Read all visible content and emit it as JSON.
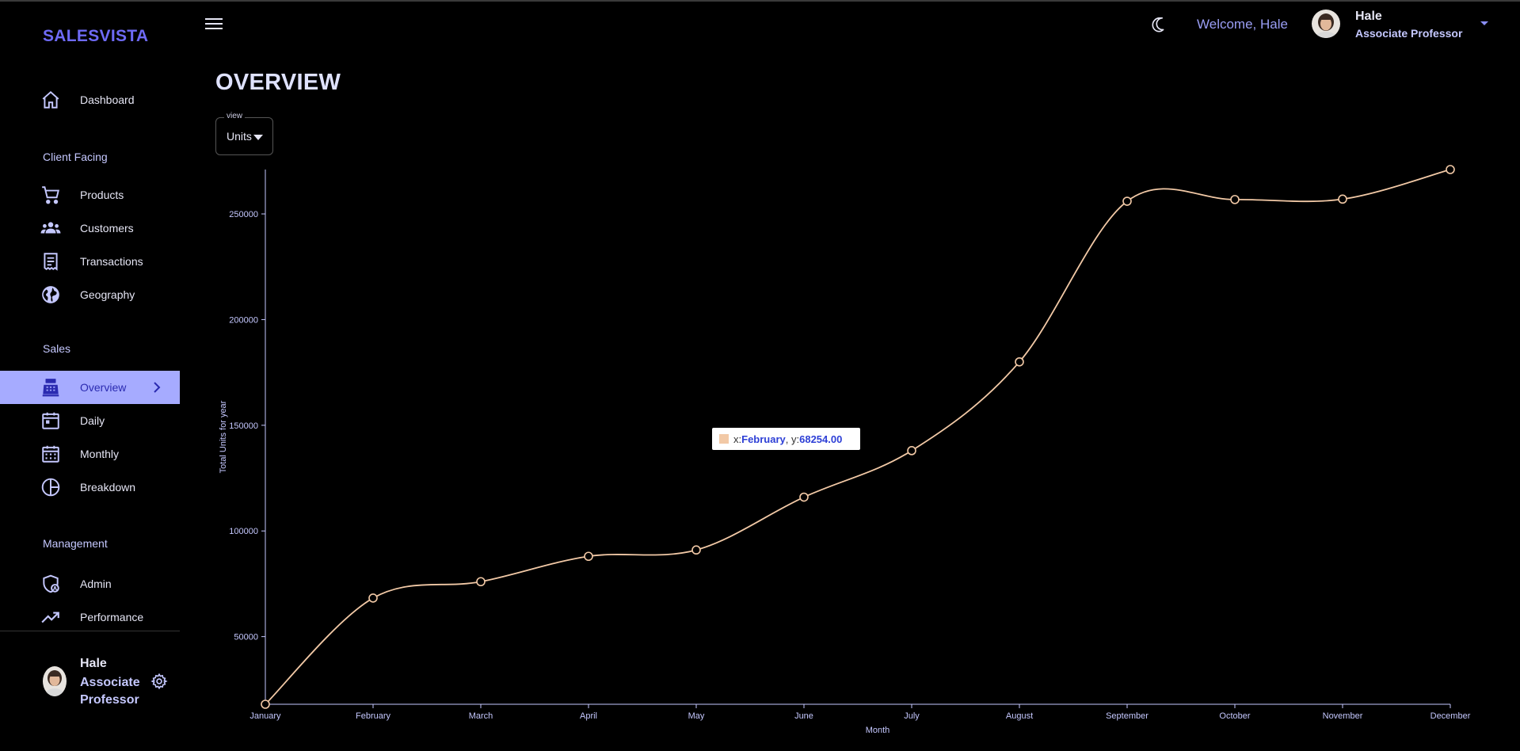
{
  "app": {
    "brand": "SALESVISTA"
  },
  "sidebar": {
    "items": [
      {
        "label": "Dashboard",
        "icon": "home-icon"
      },
      {
        "label": "Products",
        "icon": "cart-icon"
      },
      {
        "label": "Customers",
        "icon": "groups-icon"
      },
      {
        "label": "Transactions",
        "icon": "receipt-icon"
      },
      {
        "label": "Geography",
        "icon": "globe-icon"
      },
      {
        "label": "Overview",
        "icon": "point-of-sale-icon",
        "active": true
      },
      {
        "label": "Daily",
        "icon": "calendar-today-icon"
      },
      {
        "label": "Monthly",
        "icon": "calendar-month-icon"
      },
      {
        "label": "Breakdown",
        "icon": "pie-chart-icon"
      },
      {
        "label": "Admin",
        "icon": "admin-shield-icon"
      },
      {
        "label": "Performance",
        "icon": "trending-up-icon"
      }
    ],
    "sections": [
      "Client Facing",
      "Sales",
      "Management"
    ],
    "user": {
      "name": "Hale",
      "role": "Associate Professor"
    }
  },
  "header": {
    "welcome": "Welcome, Hale",
    "user_name": "Hale",
    "user_role": "Associate Professor"
  },
  "main": {
    "title": "OVERVIEW",
    "view_select": {
      "legend": "view",
      "value": "Units"
    }
  },
  "tooltip": {
    "x_prefix": "x: ",
    "x_value": "February",
    "y_prefix": ", y: ",
    "y_value": "68254.00"
  },
  "colors": {
    "accent": "#6e6af5",
    "line": "#f2c9a6",
    "active_bg": "#a6abff"
  },
  "chart_data": {
    "type": "line",
    "title": "",
    "xlabel": "Month",
    "ylabel": "Total Units for year",
    "categories": [
      "January",
      "February",
      "March",
      "April",
      "May",
      "June",
      "July",
      "August",
      "September",
      "October",
      "November",
      "December"
    ],
    "series": [
      {
        "values": [
          18000,
          68254,
          76000,
          88000,
          91000,
          116000,
          138000,
          180000,
          256000,
          256800,
          257000,
          271000
        ]
      }
    ],
    "y_ticks": [
      50000,
      100000,
      150000,
      200000,
      250000
    ],
    "y_tick_labels": [
      "50000",
      "100000",
      "150000",
      "200000",
      "250000"
    ],
    "ylim": [
      18000,
      271000
    ],
    "grid": false,
    "legend": "none",
    "curve": "smooth"
  }
}
